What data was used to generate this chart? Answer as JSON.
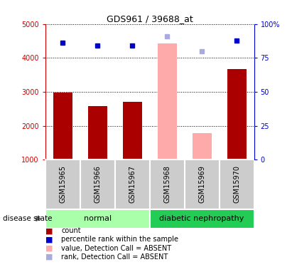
{
  "title": "GDS961 / 39688_at",
  "samples": [
    "GSM15965",
    "GSM15966",
    "GSM15967",
    "GSM15968",
    "GSM15969",
    "GSM15970"
  ],
  "bar_values": [
    2970,
    2590,
    2700,
    4420,
    1780,
    3680
  ],
  "bar_colors": [
    "#aa0000",
    "#aa0000",
    "#aa0000",
    "#ffaaaa",
    "#ffaaaa",
    "#aa0000"
  ],
  "percentile_values": [
    86,
    84,
    84,
    null,
    null,
    88
  ],
  "percentile_absent_values": [
    null,
    null,
    null,
    91,
    80,
    null
  ],
  "detection_calls": [
    "P",
    "P",
    "P",
    "A",
    "A",
    "P"
  ],
  "ylim_left": [
    1000,
    5000
  ],
  "ylim_right": [
    0,
    100
  ],
  "yticks_left": [
    1000,
    2000,
    3000,
    4000,
    5000
  ],
  "yticks_right": [
    0,
    25,
    50,
    75,
    100
  ],
  "yticklabels_right": [
    "0",
    "25",
    "50",
    "75",
    "100%"
  ],
  "left_axis_color": "#cc0000",
  "right_axis_color": "#0000cc",
  "normal_group_color": "#aaffaa",
  "diabetic_group_color": "#22cc55",
  "sample_label_bg": "#cccccc",
  "blue_square_color": "#0000cc",
  "light_blue_square_color": "#aaaadd",
  "legend_items": [
    {
      "color": "#aa0000",
      "label": "count"
    },
    {
      "color": "#0000cc",
      "label": "percentile rank within the sample"
    },
    {
      "color": "#ffaaaa",
      "label": "value, Detection Call = ABSENT"
    },
    {
      "color": "#aaaadd",
      "label": "rank, Detection Call = ABSENT"
    }
  ]
}
